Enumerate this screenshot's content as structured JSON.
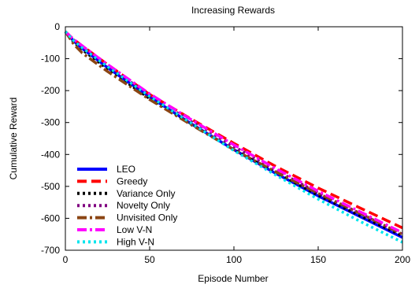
{
  "chart_data": {
    "type": "line",
    "title": "Increasing Rewards",
    "xlabel": "Episode Number",
    "ylabel": "Cumulative Reward",
    "xlim": [
      0,
      200
    ],
    "ylim": [
      -700,
      0
    ],
    "xticks": [
      0,
      50,
      100,
      150,
      200
    ],
    "yticks": [
      0,
      -100,
      -200,
      -300,
      -400,
      -500,
      -600,
      -700
    ],
    "grid": false,
    "legend_position": "bottom-left",
    "series": [
      {
        "name": "LEO",
        "color": "#0000ff",
        "dash": "solid",
        "x": [
          0,
          5,
          10,
          25,
          50,
          75,
          100,
          125,
          150,
          175,
          200
        ],
        "y": [
          -15,
          -45,
          -68,
          -128,
          -220,
          -305,
          -385,
          -460,
          -530,
          -595,
          -660
        ]
      },
      {
        "name": "Greedy",
        "color": "#ff0000",
        "dash": "dashed",
        "x": [
          0,
          5,
          10,
          25,
          50,
          75,
          100,
          125,
          150,
          175,
          200
        ],
        "y": [
          -15,
          -40,
          -60,
          -118,
          -212,
          -290,
          -365,
          -438,
          -505,
          -568,
          -630
        ]
      },
      {
        "name": "Variance Only",
        "color": "#000000",
        "dash": "dotted",
        "x": [
          0,
          5,
          10,
          25,
          50,
          75,
          100,
          125,
          150,
          175,
          200
        ],
        "y": [
          -15,
          -48,
          -72,
          -132,
          -225,
          -305,
          -385,
          -458,
          -528,
          -592,
          -655
        ]
      },
      {
        "name": "Novelty Only",
        "color": "#800080",
        "dash": "dotted",
        "x": [
          0,
          5,
          10,
          25,
          50,
          75,
          100,
          125,
          150,
          175,
          200
        ],
        "y": [
          -15,
          -42,
          -64,
          -122,
          -215,
          -298,
          -375,
          -450,
          -520,
          -585,
          -650
        ]
      },
      {
        "name": "Unvisited Only",
        "color": "#8b4513",
        "dash": "dashdot",
        "x": [
          0,
          5,
          10,
          25,
          50,
          75,
          100,
          125,
          150,
          175,
          200
        ],
        "y": [
          -15,
          -55,
          -82,
          -140,
          -228,
          -308,
          -385,
          -455,
          -522,
          -585,
          -650
        ]
      },
      {
        "name": "Low V-N",
        "color": "#ff00ff",
        "dash": "dashdot",
        "x": [
          0,
          5,
          10,
          25,
          50,
          75,
          100,
          125,
          150,
          175,
          200
        ],
        "y": [
          -15,
          -40,
          -60,
          -118,
          -210,
          -292,
          -370,
          -445,
          -515,
          -580,
          -645
        ]
      },
      {
        "name": "High V-N",
        "color": "#00e5ee",
        "dash": "dotted",
        "x": [
          0,
          5,
          10,
          25,
          50,
          75,
          100,
          125,
          150,
          175,
          200
        ],
        "y": [
          -15,
          -44,
          -66,
          -125,
          -218,
          -303,
          -388,
          -465,
          -540,
          -610,
          -675
        ]
      }
    ]
  }
}
